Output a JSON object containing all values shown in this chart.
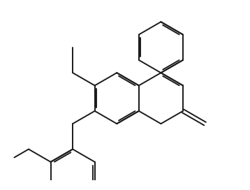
{
  "bg_color": "#ffffff",
  "bond_color": "#1a1a1a",
  "bond_lw": 1.4,
  "dbo": 0.055,
  "b": 0.78,
  "figsize": [
    3.58,
    2.72
  ],
  "dpi": 100,
  "xlim": [
    0.2,
    7.8
  ],
  "ylim": [
    0.3,
    5.5
  ]
}
